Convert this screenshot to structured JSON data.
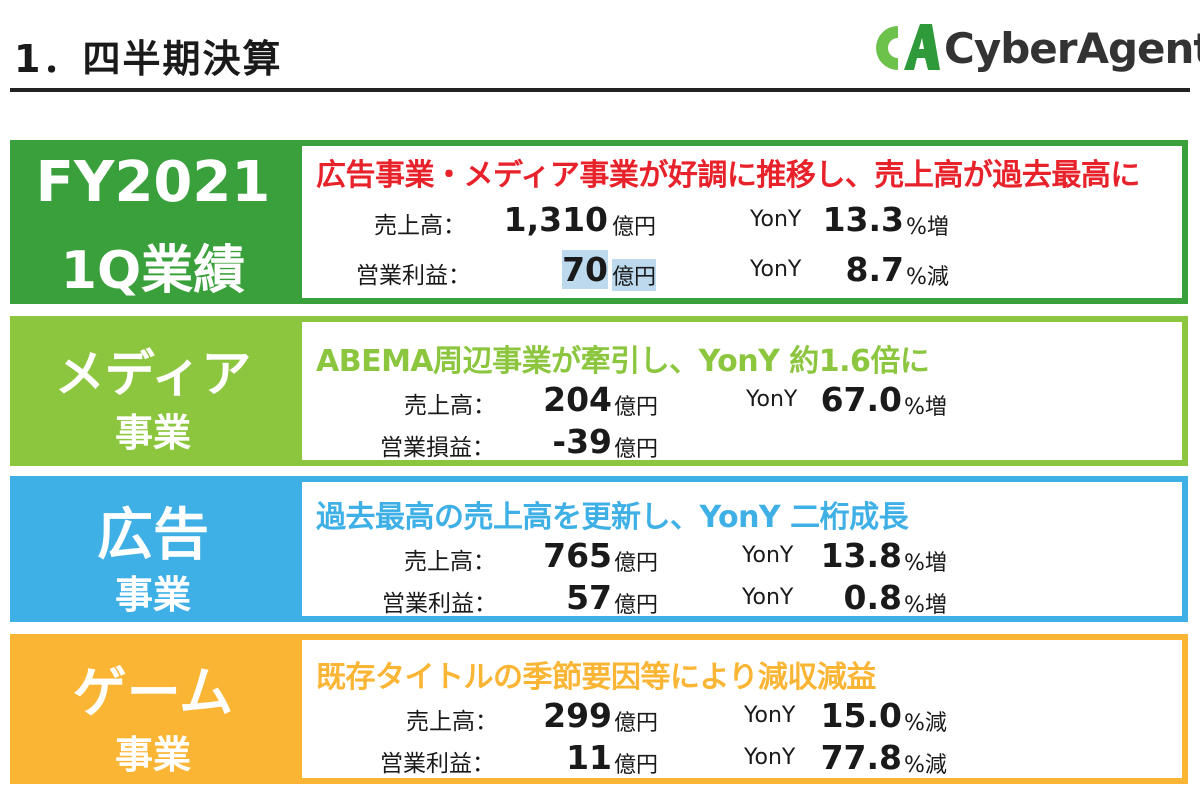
{
  "page": {
    "title": "1．四半期決算"
  },
  "logo": {
    "text": "CyberAgent"
  },
  "colors": {
    "fy": "#3aa03c",
    "media": "#8cc63f",
    "ad": "#3fb0e6",
    "game": "#fbb534",
    "headline_fy": "#e8222b"
  },
  "sections": {
    "fy": {
      "label_line1": "FY2021",
      "label_line2": "1Q業績",
      "headline": "広告事業・メディア事業が好調に推移し、売上高が過去最高に",
      "rows": [
        {
          "label": "売上高：",
          "value": "1,310",
          "unit": "億円",
          "yony": "YonY",
          "pct": "13.3",
          "change": "%増"
        },
        {
          "label": "営業利益：",
          "value": "70",
          "unit": "億円",
          "yony": "YonY",
          "pct": "8.7",
          "change": "%減"
        }
      ]
    },
    "media": {
      "label_line1": "メディア",
      "label_line2": "事業",
      "headline": "ABEMA周辺事業が牽引し、YonY 約1.6倍に",
      "rows": [
        {
          "label": "売上高：",
          "value": "204",
          "unit": "億円",
          "yony": "YonY",
          "pct": "67.0",
          "change": "%増"
        },
        {
          "label": "営業損益：",
          "value": "-39",
          "unit": "億円"
        }
      ]
    },
    "ad": {
      "label_line1": "広告",
      "label_line2": "事業",
      "headline": "過去最高の売上高を更新し、YonY 二桁成長",
      "rows": [
        {
          "label": "売上高：",
          "value": "765",
          "unit": "億円",
          "yony": "YonY",
          "pct": "13.8",
          "change": "%増"
        },
        {
          "label": "営業利益：",
          "value": "57",
          "unit": "億円",
          "yony": "YonY",
          "pct": "0.8",
          "change": "%増"
        }
      ]
    },
    "game": {
      "label_line1": "ゲーム",
      "label_line2": "事業",
      "headline": "既存タイトルの季節要因等により減収減益",
      "rows": [
        {
          "label": "売上高：",
          "value": "299",
          "unit": "億円",
          "yony": "YonY",
          "pct": "15.0",
          "change": "%減"
        },
        {
          "label": "営業利益：",
          "value": "11",
          "unit": "億円",
          "yony": "YonY",
          "pct": "77.8",
          "change": "%減"
        }
      ]
    }
  }
}
